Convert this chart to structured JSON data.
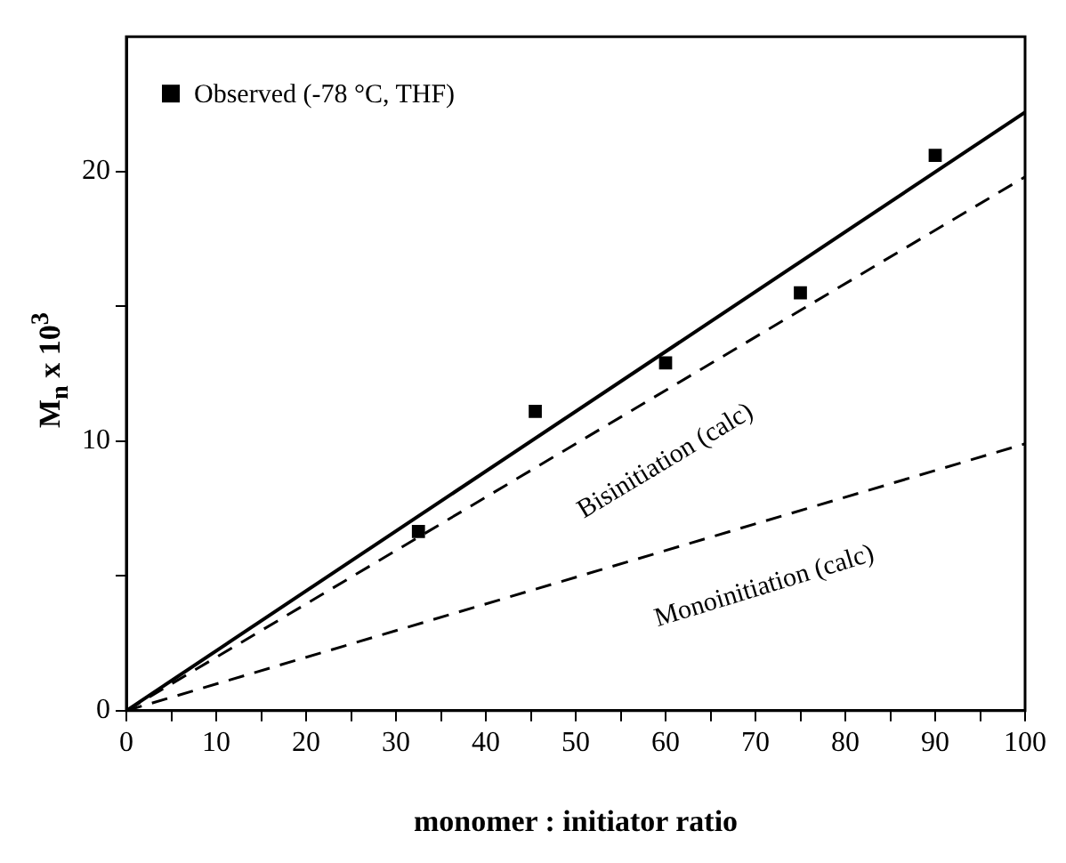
{
  "chart_data": {
    "type": "scatter",
    "xlabel": "monomer : initiator ratio",
    "ylabel": "M$_{n}$ x 10$^{3}$",
    "xlim": [
      0,
      100
    ],
    "xticks": [
      0,
      {
        "value": 5,
        "label": null
      },
      10,
      {
        "value": 15,
        "label": null
      },
      20,
      {
        "value": 25,
        "label": null
      },
      30,
      {
        "value": 35,
        "label": null
      },
      40,
      {
        "value": 45,
        "label": null
      },
      50,
      {
        "value": 55,
        "label": null
      },
      60,
      {
        "value": 65,
        "label": null
      },
      70,
      {
        "value": 75,
        "label": null
      },
      80,
      {
        "value": 85,
        "label": null
      },
      90,
      {
        "value": 95,
        "label": null
      },
      100
    ],
    "ylim": [
      0,
      25
    ],
    "yticks": [
      0,
      {
        "value": 5,
        "label": null
      },
      10,
      {
        "value": 15,
        "label": null
      },
      20
    ],
    "grid": false,
    "legend": "top left",
    "series": [
      {
        "name": "Observed (-78 °C, THF)",
        "marker": "square",
        "color": "#000000",
        "x": [
          32.5,
          45.5,
          60,
          75,
          90
        ],
        "values": [
          6.65,
          11.1,
          12.9,
          15.5,
          20.6
        ]
      },
      {
        "type": "line",
        "line_style": "solid",
        "color": "#000000",
        "x": [
          0,
          100
        ],
        "values": [
          0,
          22.2
        ]
      },
      {
        "type": "line",
        "line_style": "dashed",
        "color": "#000000",
        "x": [
          0,
          100
        ],
        "values": [
          0,
          19.8
        ]
      },
      {
        "type": "line",
        "line_style": "dashed",
        "color": "#000000",
        "x": [
          0,
          100
        ],
        "values": [
          0,
          9.9
        ]
      }
    ],
    "annotations": [
      "Bisinitiation (calc)",
      "Monoinitiation (calc)"
    ]
  }
}
